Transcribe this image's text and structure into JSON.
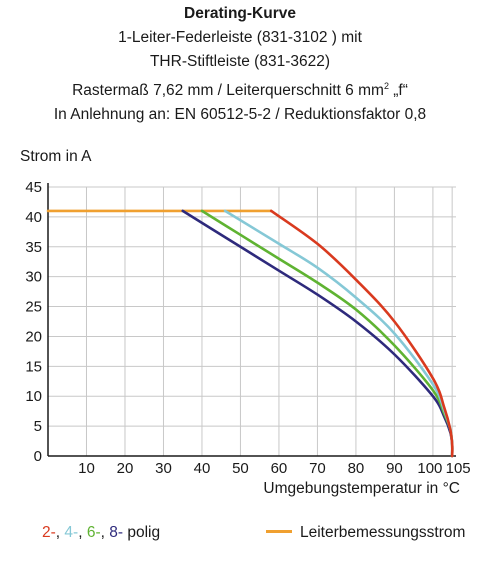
{
  "title": {
    "main": "Derating-Kurve",
    "line2": "1-Leiter-Federleiste (831-3102 ) mit",
    "line3": "THR-Stiftleiste (831-3622)",
    "line4_pre": "Rastermaß 7,62 mm / Leiterquerschnitt 6 mm",
    "line4_sup": "2",
    "line4_post": " „f“",
    "line5": "In Anlehnung an: EN 60512-5-2 / Reduktionsfaktor 0,8"
  },
  "legend": {
    "poles": [
      {
        "text": "2-",
        "color": "#d93a1f"
      },
      {
        "text": "4-",
        "color": "#85c8d6"
      },
      {
        "text": "6-",
        "color": "#5fb332"
      },
      {
        "text": "8-",
        "color": "#2e2a7c"
      }
    ],
    "poles_suffix": " polig",
    "rated_label": "Leiterbemessungsstrom",
    "rated_color": "#f0a030"
  },
  "chart_data": {
    "type": "line",
    "xlabel": "Umgebungstemperatur in °C",
    "ylabel": "Strom in A",
    "xlim": [
      0,
      106
    ],
    "ylim": [
      0,
      45
    ],
    "xticks": [
      10,
      20,
      30,
      40,
      50,
      60,
      70,
      80,
      90,
      100,
      105
    ],
    "yticks": [
      0,
      5,
      10,
      15,
      20,
      25,
      30,
      35,
      40,
      45
    ],
    "grid": true,
    "series": [
      {
        "name": "2-",
        "color": "#d93a1f",
        "x": [
          58,
          70,
          80,
          90,
          100,
          103,
          104.5,
          105,
          105
        ],
        "y": [
          41,
          35.5,
          29.5,
          22.5,
          13,
          8,
          4.5,
          2,
          0
        ]
      },
      {
        "name": "4-",
        "color": "#85c8d6",
        "x": [
          46,
          60,
          70,
          80,
          90,
          100,
          103,
          104.5,
          105,
          105
        ],
        "y": [
          41,
          35.5,
          31.5,
          26.5,
          20.5,
          12,
          7.5,
          4.5,
          2,
          0
        ]
      },
      {
        "name": "6-",
        "color": "#5fb332",
        "x": [
          40,
          50,
          60,
          70,
          80,
          90,
          100,
          103,
          104.5,
          105,
          105
        ],
        "y": [
          41,
          37,
          33,
          29,
          24.5,
          18.5,
          11,
          7,
          4.5,
          2,
          0
        ]
      },
      {
        "name": "8-",
        "color": "#2e2a7c",
        "x": [
          35,
          40,
          50,
          60,
          70,
          80,
          90,
          100,
          103,
          104.5,
          105,
          105
        ],
        "y": [
          41,
          39,
          35,
          31,
          27,
          22.5,
          17,
          10,
          6.5,
          4,
          2,
          0
        ]
      },
      {
        "name": "Leiterbemessungsstrom",
        "color": "#f0a030",
        "x": [
          0,
          58
        ],
        "y": [
          41,
          41
        ]
      }
    ]
  }
}
